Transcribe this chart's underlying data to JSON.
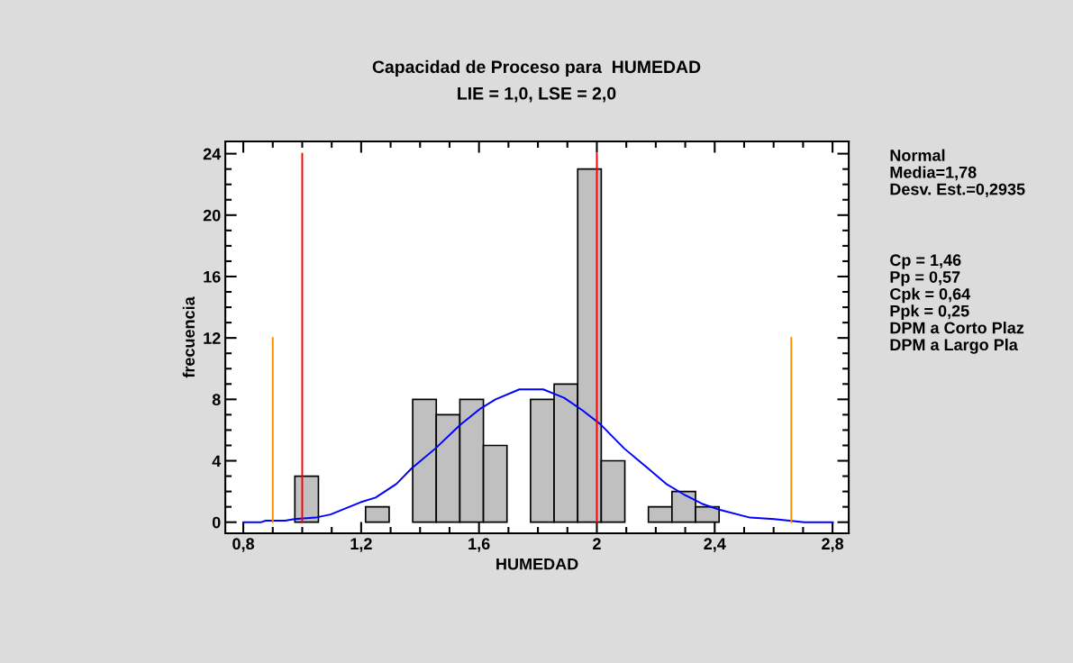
{
  "chart_data": {
    "type": "histogram",
    "title": "Capacidad de Proceso para  HUMEDAD",
    "subtitle": "LIE = 1,0, LSE = 2,0",
    "xlabel": "HUMEDAD",
    "ylabel": "frecuencia",
    "bins": [
      0.895,
      0.975,
      1.055,
      1.135,
      1.215,
      1.295,
      1.375,
      1.455,
      1.535,
      1.615,
      1.695,
      1.775,
      1.855,
      1.935,
      2.015,
      2.095,
      2.175,
      2.255,
      2.335,
      2.415,
      2.495
    ],
    "values": [
      0,
      3,
      0,
      0,
      1,
      0,
      8,
      7,
      8,
      5,
      0,
      8,
      9,
      23,
      4,
      0,
      1,
      2,
      1,
      0
    ],
    "color": "#c0c0c0",
    "series": [
      {
        "type": "line",
        "color": "#0000ff",
        "x": [
          0.8,
          0.861,
          0.876,
          0.942,
          0.973,
          1.045,
          1.096,
          1.147,
          1.198,
          1.249,
          1.32,
          1.371,
          1.452,
          1.534,
          1.605,
          1.656,
          1.737,
          1.818,
          1.889,
          1.95,
          2.011,
          2.093,
          2.174,
          2.235,
          2.296,
          2.357,
          2.418,
          2.52,
          2.602,
          2.653,
          2.704,
          2.801
        ],
        "values": [
          0,
          0,
          0.1,
          0.1,
          0.2,
          0.3,
          0.5,
          0.9,
          1.3,
          1.6,
          2.5,
          3.5,
          4.8,
          6.3,
          7.4,
          8.0,
          8.65,
          8.65,
          8.1,
          7.3,
          6.4,
          4.8,
          3.5,
          2.5,
          1.8,
          1.2,
          0.8,
          0.3,
          0.2,
          0.1,
          0,
          0
        ]
      },
      {
        "type": "line",
        "color": "#ff0000",
        "x": [
          1.0,
          1.0
        ],
        "values": [
          0,
          24
        ]
      },
      {
        "type": "line",
        "color": "#ff0000",
        "x": [
          2.0,
          2.0
        ],
        "values": [
          0,
          24
        ]
      },
      {
        "type": "line",
        "color": "#ff8c00",
        "x": [
          0.9,
          0.9
        ],
        "values": [
          0,
          12
        ]
      },
      {
        "type": "line",
        "color": "#ff8c00",
        "x": [
          2.66,
          2.66
        ],
        "values": [
          0,
          12
        ]
      }
    ],
    "xlim": [
      0.739,
      2.855
    ],
    "ylim": [
      -0.72,
      24.8
    ],
    "xticks": [
      {
        "value": 0.8,
        "label": "0,8"
      },
      {
        "value": 1.2,
        "label": "1,2"
      },
      {
        "value": 1.6,
        "label": "1,6"
      },
      2,
      {
        "value": 2.4,
        "label": "2,4"
      },
      {
        "value": 2.8,
        "label": "2,8"
      }
    ],
    "yticks": [
      0,
      4,
      8,
      12,
      16,
      20,
      24
    ],
    "annotations": [
      "Normal\nMedia=1,78\nDesv. Est.=0,2935",
      "Cp = 1,46\nPp = 0,57\nCpk = 0,64\nPpk = 0,25\nDPM a Corto Plaz\nDPM a Largo Pla"
    ]
  }
}
